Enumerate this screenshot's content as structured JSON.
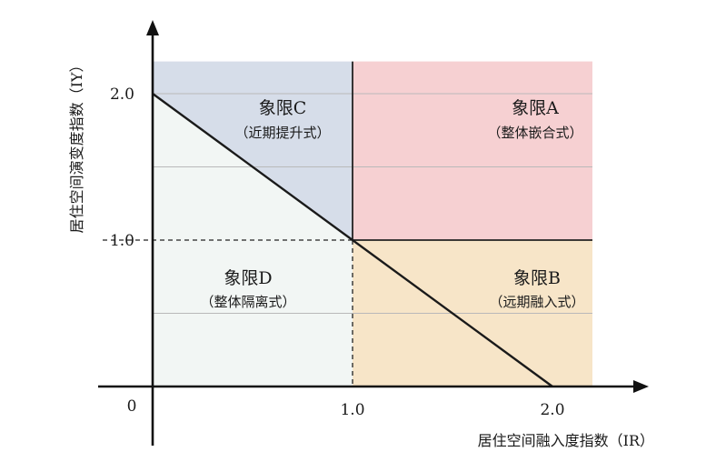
{
  "axes": {
    "x_label": "居住空间融入度指数（IR）",
    "y_label": "居住空间演变度指数（IY）",
    "origin_label": "0",
    "x_ticks": [
      {
        "value": 1.0,
        "label": "1.0"
      },
      {
        "value": 2.0,
        "label": "2.0"
      }
    ],
    "y_ticks": [
      {
        "value": 1.0,
        "label": "1.0"
      },
      {
        "value": 2.0,
        "label": "2.0"
      }
    ]
  },
  "quadrants": [
    {
      "id": "A",
      "name": "象限A",
      "sub": "（整体嵌合式）"
    },
    {
      "id": "B",
      "name": "象限B",
      "sub": "（远期融入式）"
    },
    {
      "id": "C",
      "name": "象限C",
      "sub": "（近期提升式）"
    },
    {
      "id": "D",
      "name": "象限D",
      "sub": "（整体隔离式）"
    }
  ],
  "colors": {
    "A": "#f6d0d2",
    "B": "#f7e5c8",
    "C": "#d6dde9",
    "D": "#f2f6f4",
    "axis": "#111111",
    "gridline": "#b9b9b9"
  },
  "chart_data": {
    "type": "diagram",
    "x_range": [
      0,
      2.2
    ],
    "y_range": [
      0,
      2.2
    ],
    "dividers": {
      "x": 1.0,
      "y": 1.0
    },
    "diagonal": {
      "from": [
        0,
        2
      ],
      "to": [
        2,
        0
      ]
    },
    "gridlines_y": [
      0.5,
      1.5,
      2.0
    ]
  }
}
